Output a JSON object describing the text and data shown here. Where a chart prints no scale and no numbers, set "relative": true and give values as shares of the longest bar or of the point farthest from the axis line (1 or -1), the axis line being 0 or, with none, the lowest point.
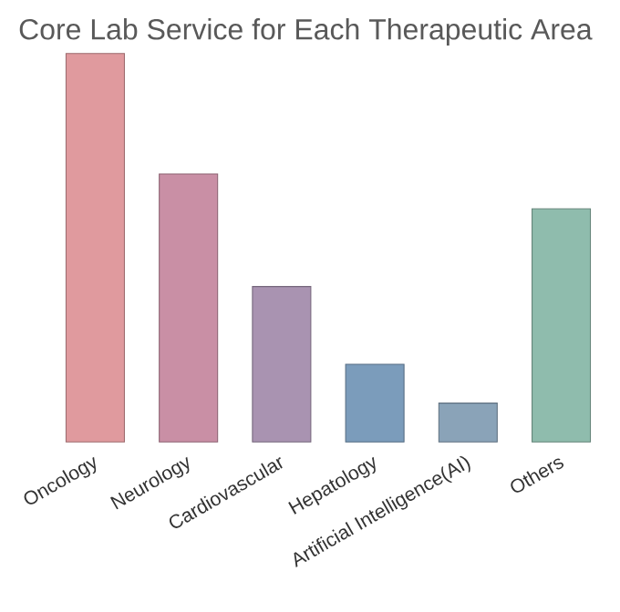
{
  "chart_data": {
    "type": "bar",
    "title": "Core Lab Service for Each Therapeutic Area",
    "relative": true,
    "categories": [
      "Oncology",
      "Neurology",
      "Cardiovascular",
      "Hepatology",
      "Artificial Intelligence(AI)",
      "Others"
    ],
    "values": [
      1,
      0.69,
      0.4,
      0.2,
      0.1,
      0.6
    ],
    "colors": [
      "#e09a9e",
      "#c98fa5",
      "#a993b1",
      "#7b9cbb",
      "#8aa3b8",
      "#8fbcad"
    ]
  }
}
